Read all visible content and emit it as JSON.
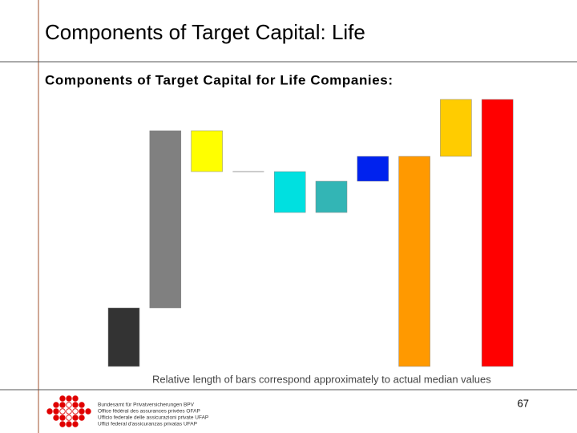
{
  "slide": {
    "title": "Components of Target Capital: Life",
    "page_number": "67",
    "logo_lines": [
      "Bundesamt für Privatversicherungen BPV",
      "Office fédéral des assurances privées OFAP",
      "Ufficio federale delle assicurazioni private UFAP",
      "Uffizi federal d'assicuranzas privatas UFAP"
    ]
  },
  "chart_data": {
    "type": "waterfall",
    "title": "Components of Target Capital for Life Companies:",
    "annotation": "Relative length of bars correspond approximately to actual median values",
    "values": [
      73,
      221,
      -51,
      0,
      -51,
      39,
      31,
      262,
      71,
      333
    ],
    "measure": [
      "absolute",
      "relative",
      "relative",
      "relative",
      "relative",
      "relative",
      "relative",
      "total",
      "relative",
      "total"
    ],
    "colors": [
      "#333333",
      "#808080",
      "#ffff00",
      "#999999",
      "#00e0e0",
      "#33b5b5",
      "#0022ee",
      "#ff9900",
      "#ffcc00",
      "#ff0000"
    ],
    "ylim": [
      0,
      340
    ]
  }
}
